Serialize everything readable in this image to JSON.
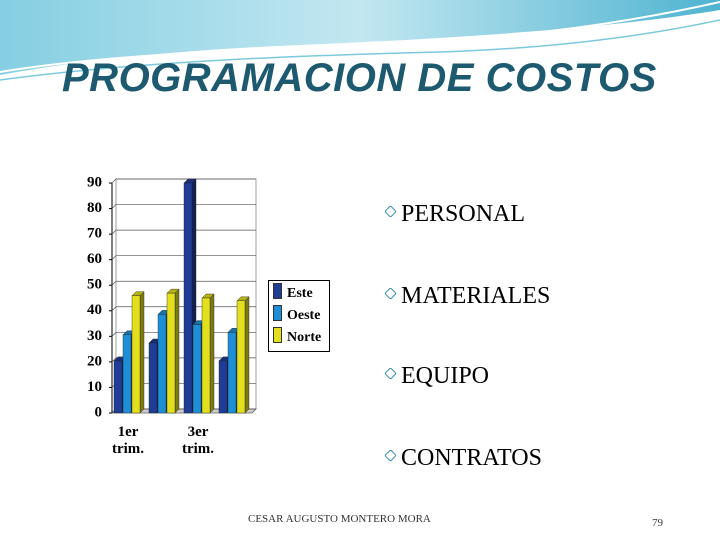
{
  "title": "PROGRAMACION DE COSTOS",
  "bullets": [
    "PERSONAL",
    "MATERIALES",
    "EQUIPO",
    "CONTRATOS"
  ],
  "footer": "CESAR AUGUSTO MONTERO MORA",
  "page_number": "79",
  "chart_data": {
    "type": "bar",
    "categories": [
      "1er trim.",
      null,
      "3er trim.",
      null
    ],
    "series": [
      {
        "name": "Este",
        "color": "#1f3c96",
        "values": [
          20.4,
          27.4,
          90,
          20.4
        ]
      },
      {
        "name": "Oeste",
        "color": "#1e8fd6",
        "values": [
          30.6,
          38.6,
          34.6,
          31.6
        ]
      },
      {
        "name": "Norte",
        "color": "#e4df1c",
        "values": [
          45.9,
          46.9,
          45,
          43.9
        ]
      }
    ],
    "ylim": [
      0,
      90
    ],
    "yticks": [
      0,
      10,
      20,
      30,
      40,
      50,
      60,
      70,
      80,
      90
    ],
    "grid": true
  }
}
